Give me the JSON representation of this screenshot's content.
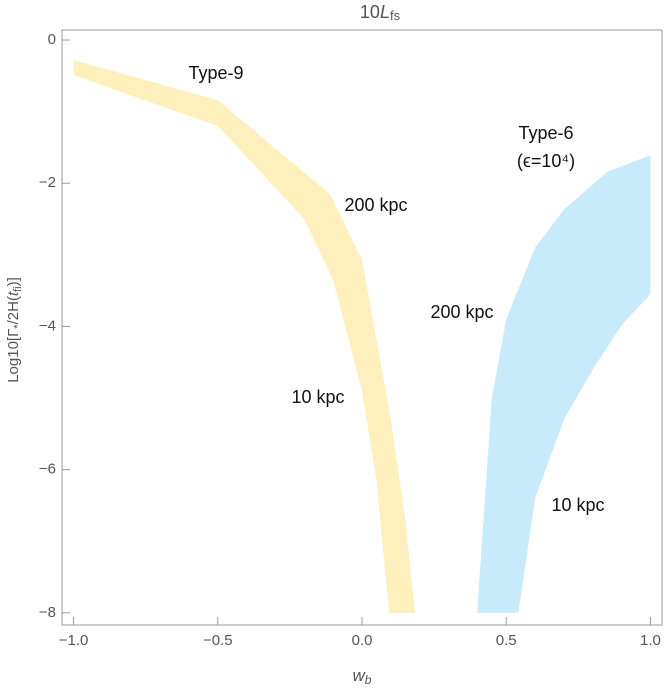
{
  "chart_data": {
    "type": "band",
    "title": [
      "10",
      "L",
      "fs"
    ],
    "x_label": [
      "w",
      "b"
    ],
    "y_label": [
      "Log10[Γ",
      "*",
      "/2H(",
      "t",
      "fi",
      ")]"
    ],
    "xlim": [
      -1.04,
      1.04
    ],
    "ylim": [
      -8.17,
      0.14
    ],
    "xticks": [
      {
        "value": -1,
        "label": "−1.0"
      },
      {
        "value": -0.5,
        "label": "−0.5"
      },
      {
        "value": 0,
        "label": "0.0"
      },
      {
        "value": 0.5,
        "label": "0.5"
      },
      {
        "value": 1,
        "label": "1.0"
      }
    ],
    "yticks": [
      0,
      {
        "value": -2,
        "label": "−2"
      },
      {
        "value": -4,
        "label": "−4"
      },
      {
        "value": -6,
        "label": "−6"
      },
      {
        "value": -8,
        "label": "−8"
      }
    ],
    "series": [
      {
        "color": "#fdf0bd",
        "edges": [
          {
            "x": [
              -1,
              -0.5,
              -0.11,
              0,
              0.1,
              0.15,
              0.184
            ],
            "y": [
              -0.28,
              -0.84,
              -2.16,
              -3.07,
              -5.3,
              -6.7,
              -8
            ]
          },
          {
            "x": [
              -1,
              -0.5,
              -0.2,
              -0.1,
              0,
              0.05,
              0.094
            ],
            "y": [
              -0.49,
              -1.2,
              -2.5,
              -3.35,
              -4.9,
              -6.15,
              -8
            ]
          }
        ]
      },
      {
        "color": "#c8ebfb",
        "edges": [
          {
            "x": [
              0.399,
              0.45,
              0.5,
              0.6,
              0.7,
              0.85,
              1
            ],
            "y": [
              -8,
              -5.0,
              -3.9,
              -2.9,
              -2.37,
              -1.84,
              -1.61
            ]
          },
          {
            "x": [
              0.542,
              0.6,
              0.7,
              0.8,
              0.9,
              1
            ],
            "y": [
              -8,
              -6.4,
              -5.3,
              -4.6,
              -3.98,
              -3.55
            ]
          }
        ]
      }
    ],
    "annotations": [
      "Type-9",
      "200 kpc",
      "10 kpc",
      "Type-6",
      "(ϵ=10⁴)",
      "200 kpc",
      "10 kpc"
    ]
  }
}
